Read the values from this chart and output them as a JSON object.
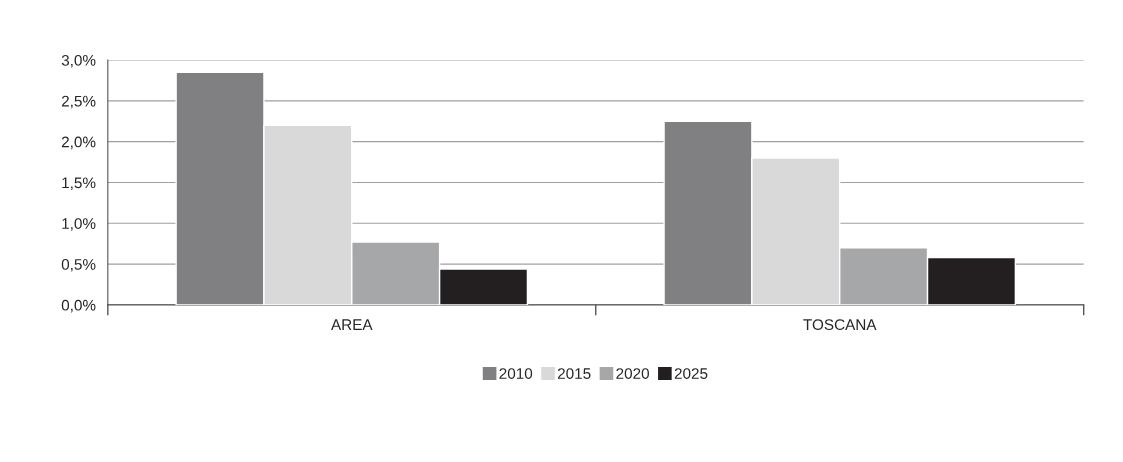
{
  "chart_data": {
    "type": "bar",
    "categories": [
      "AREA",
      "TOSCANA"
    ],
    "series": [
      {
        "name": "2010",
        "color": "#808083",
        "values": [
          2.85,
          2.25
        ]
      },
      {
        "name": "2015",
        "color": "#d9d9da",
        "values": [
          2.2,
          1.8
        ]
      },
      {
        "name": "2020",
        "color": "#a6a7a9",
        "values": [
          0.77,
          0.7
        ]
      },
      {
        "name": "2025",
        "color": "#231f20",
        "values": [
          0.44,
          0.58
        ]
      }
    ],
    "ylim": [
      0,
      3
    ],
    "yticks": [
      {
        "value": 0,
        "label": "0,0%"
      },
      {
        "value": 0.5,
        "label": "0,5%"
      },
      {
        "value": 1,
        "label": "1,0%"
      },
      {
        "value": 1.5,
        "label": "1,5%"
      },
      {
        "value": 2,
        "label": "2,0%"
      },
      {
        "value": 2.5,
        "label": "2,5%"
      },
      {
        "value": 3,
        "label": "3,0%"
      }
    ],
    "grid": "y",
    "legend": "bottom"
  }
}
